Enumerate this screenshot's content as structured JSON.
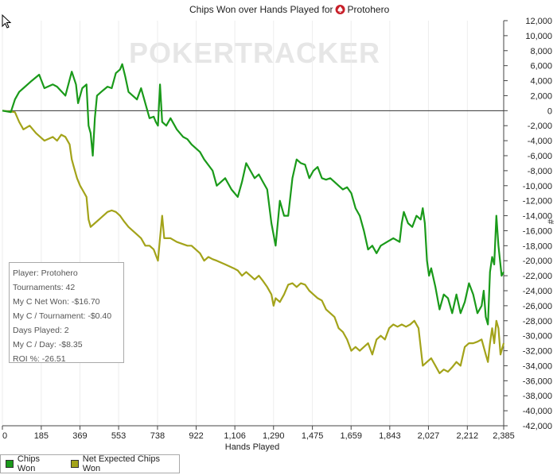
{
  "chart_data": {
    "type": "line",
    "title_prefix": "Chips Won over Hands Played for",
    "player_name": "Protohero",
    "watermark": "POKERTRACKER",
    "xlabel": "Hands Played",
    "ylabel": "#",
    "xlim": [
      0,
      2385
    ],
    "ylim": [
      -42000,
      12000
    ],
    "x_ticks": [
      0,
      185,
      369,
      553,
      738,
      922,
      1106,
      1290,
      1475,
      1659,
      1843,
      2027,
      2212,
      2385
    ],
    "x_tick_labels": [
      "0",
      "185",
      "369",
      "553",
      "738",
      "922",
      "1,106",
      "1,290",
      "1,475",
      "1,659",
      "1,843",
      "2,027",
      "2,212",
      "2,385"
    ],
    "y_ticks": [
      12000,
      10000,
      8000,
      6000,
      4000,
      2000,
      0,
      -2000,
      -4000,
      -6000,
      -8000,
      -10000,
      -12000,
      -14000,
      -16000,
      -18000,
      -20000,
      -22000,
      -24000,
      -26000,
      -28000,
      -30000,
      -32000,
      -34000,
      -36000,
      -38000,
      -40000,
      -42000
    ],
    "y_tick_labels": [
      "12,000",
      "10,000",
      "8,000",
      "6,000",
      "4,000",
      "2,000",
      "0",
      "-2,000",
      "-4,000",
      "-6,000",
      "-8,000",
      "-10,000",
      "-12,000",
      "-14,000",
      "-16,000",
      "-18,000",
      "-20,000",
      "-22,000",
      "-24,000",
      "-26,000",
      "-28,000",
      "-30,000",
      "-32,000",
      "-34,000",
      "-36,000",
      "-38,000",
      "-40,000",
      "-42,000"
    ],
    "grid": "vertical",
    "legend_position": "bottom-left",
    "series": [
      {
        "name": "Chips Won",
        "color": "#1a9a1a",
        "points": [
          [
            0,
            0
          ],
          [
            40,
            -200
          ],
          [
            60,
            1500
          ],
          [
            80,
            2500
          ],
          [
            100,
            3000
          ],
          [
            140,
            4000
          ],
          [
            175,
            4800
          ],
          [
            200,
            3000
          ],
          [
            240,
            3500
          ],
          [
            260,
            3200
          ],
          [
            300,
            2000
          ],
          [
            330,
            5200
          ],
          [
            350,
            3500
          ],
          [
            360,
            1000
          ],
          [
            380,
            3000
          ],
          [
            400,
            3500
          ],
          [
            410,
            -2000
          ],
          [
            420,
            -3000
          ],
          [
            430,
            -6000
          ],
          [
            440,
            -1000
          ],
          [
            450,
            2000
          ],
          [
            470,
            2500
          ],
          [
            500,
            3200
          ],
          [
            520,
            3000
          ],
          [
            540,
            5000
          ],
          [
            560,
            5500
          ],
          [
            570,
            6200
          ],
          [
            585,
            4500
          ],
          [
            600,
            2500
          ],
          [
            620,
            2000
          ],
          [
            640,
            1500
          ],
          [
            660,
            3000
          ],
          [
            680,
            1000
          ],
          [
            700,
            -1000
          ],
          [
            720,
            -800
          ],
          [
            730,
            -1500
          ],
          [
            740,
            -2000
          ],
          [
            750,
            3500
          ],
          [
            760,
            -1500
          ],
          [
            780,
            -2000
          ],
          [
            800,
            -1000
          ],
          [
            830,
            -2500
          ],
          [
            860,
            -3500
          ],
          [
            880,
            -3800
          ],
          [
            900,
            -4500
          ],
          [
            920,
            -5000
          ],
          [
            940,
            -5500
          ],
          [
            960,
            -6500
          ],
          [
            1000,
            -8000
          ],
          [
            1020,
            -10000
          ],
          [
            1040,
            -9500
          ],
          [
            1060,
            -9000
          ],
          [
            1090,
            -10500
          ],
          [
            1120,
            -11500
          ],
          [
            1140,
            -9500
          ],
          [
            1160,
            -7000
          ],
          [
            1180,
            -8000
          ],
          [
            1200,
            -9000
          ],
          [
            1220,
            -8500
          ],
          [
            1240,
            -9500
          ],
          [
            1260,
            -10500
          ],
          [
            1280,
            -15000
          ],
          [
            1300,
            -18000
          ],
          [
            1320,
            -12000
          ],
          [
            1340,
            -14000
          ],
          [
            1360,
            -14000
          ],
          [
            1380,
            -9000
          ],
          [
            1400,
            -6500
          ],
          [
            1420,
            -7000
          ],
          [
            1440,
            -7200
          ],
          [
            1460,
            -9000
          ],
          [
            1480,
            -8000
          ],
          [
            1500,
            -7500
          ],
          [
            1520,
            -9000
          ],
          [
            1540,
            -9200
          ],
          [
            1560,
            -9000
          ],
          [
            1580,
            -9500
          ],
          [
            1600,
            -10000
          ],
          [
            1620,
            -10500
          ],
          [
            1640,
            -10200
          ],
          [
            1660,
            -11000
          ],
          [
            1680,
            -13000
          ],
          [
            1700,
            -14000
          ],
          [
            1720,
            -16000
          ],
          [
            1740,
            -18500
          ],
          [
            1760,
            -18000
          ],
          [
            1780,
            -19000
          ],
          [
            1800,
            -18000
          ],
          [
            1830,
            -17500
          ],
          [
            1860,
            -17000
          ],
          [
            1890,
            -17500
          ],
          [
            1900,
            -15000
          ],
          [
            1910,
            -13500
          ],
          [
            1930,
            -15000
          ],
          [
            1950,
            -15500
          ],
          [
            1970,
            -14000
          ],
          [
            1990,
            -14500
          ],
          [
            2000,
            -13000
          ],
          [
            2010,
            -15000
          ],
          [
            2020,
            -20000
          ],
          [
            2030,
            -22000
          ],
          [
            2040,
            -21000
          ],
          [
            2060,
            -23500
          ],
          [
            2080,
            -26500
          ],
          [
            2100,
            -24500
          ],
          [
            2120,
            -25000
          ],
          [
            2140,
            -27000
          ],
          [
            2160,
            -24500
          ],
          [
            2180,
            -27000
          ],
          [
            2200,
            -25500
          ],
          [
            2220,
            -23000
          ],
          [
            2240,
            -24500
          ],
          [
            2260,
            -27000
          ],
          [
            2280,
            -26000
          ],
          [
            2290,
            -24000
          ],
          [
            2300,
            -27500
          ],
          [
            2310,
            -28500
          ],
          [
            2320,
            -21500
          ],
          [
            2330,
            -19500
          ],
          [
            2340,
            -20500
          ],
          [
            2350,
            -14000
          ],
          [
            2360,
            -18000
          ],
          [
            2375,
            -22000
          ],
          [
            2385,
            -21500
          ]
        ]
      },
      {
        "name": "Net Expected Chips Won",
        "color": "#a3a31a",
        "points": [
          [
            0,
            0
          ],
          [
            60,
            -200
          ],
          [
            80,
            -1500
          ],
          [
            100,
            -2500
          ],
          [
            130,
            -2000
          ],
          [
            160,
            -3000
          ],
          [
            200,
            -4000
          ],
          [
            240,
            -3500
          ],
          [
            260,
            -4000
          ],
          [
            280,
            -3200
          ],
          [
            300,
            -3500
          ],
          [
            320,
            -4500
          ],
          [
            330,
            -6500
          ],
          [
            340,
            -7500
          ],
          [
            355,
            -9000
          ],
          [
            370,
            -10000
          ],
          [
            380,
            -10500
          ],
          [
            400,
            -11500
          ],
          [
            410,
            -14500
          ],
          [
            420,
            -15500
          ],
          [
            440,
            -15000
          ],
          [
            460,
            -14500
          ],
          [
            480,
            -14000
          ],
          [
            500,
            -13500
          ],
          [
            520,
            -13300
          ],
          [
            540,
            -13500
          ],
          [
            560,
            -14000
          ],
          [
            580,
            -14800
          ],
          [
            600,
            -15500
          ],
          [
            620,
            -16000
          ],
          [
            640,
            -16500
          ],
          [
            660,
            -17000
          ],
          [
            680,
            -18000
          ],
          [
            700,
            -18000
          ],
          [
            720,
            -18500
          ],
          [
            740,
            -20000
          ],
          [
            750,
            -17000
          ],
          [
            760,
            -14000
          ],
          [
            770,
            -17000
          ],
          [
            800,
            -17000
          ],
          [
            830,
            -17500
          ],
          [
            860,
            -17800
          ],
          [
            880,
            -18000
          ],
          [
            900,
            -18000
          ],
          [
            920,
            -18500
          ],
          [
            940,
            -19000
          ],
          [
            960,
            -20000
          ],
          [
            980,
            -19500
          ],
          [
            1000,
            -19800
          ],
          [
            1020,
            -20000
          ],
          [
            1060,
            -20500
          ],
          [
            1100,
            -21000
          ],
          [
            1120,
            -21300
          ],
          [
            1140,
            -22000
          ],
          [
            1160,
            -21500
          ],
          [
            1180,
            -22000
          ],
          [
            1200,
            -22500
          ],
          [
            1220,
            -22000
          ],
          [
            1240,
            -22700
          ],
          [
            1260,
            -23500
          ],
          [
            1280,
            -24500
          ],
          [
            1290,
            -26000
          ],
          [
            1300,
            -25000
          ],
          [
            1320,
            -25500
          ],
          [
            1340,
            -24500
          ],
          [
            1360,
            -23200
          ],
          [
            1380,
            -23000
          ],
          [
            1400,
            -23500
          ],
          [
            1420,
            -23000
          ],
          [
            1440,
            -23200
          ],
          [
            1460,
            -24000
          ],
          [
            1480,
            -24500
          ],
          [
            1500,
            -25000
          ],
          [
            1520,
            -25300
          ],
          [
            1540,
            -26500
          ],
          [
            1560,
            -27000
          ],
          [
            1580,
            -27500
          ],
          [
            1600,
            -29000
          ],
          [
            1620,
            -29500
          ],
          [
            1640,
            -30500
          ],
          [
            1660,
            -32000
          ],
          [
            1680,
            -31500
          ],
          [
            1700,
            -32000
          ],
          [
            1720,
            -31500
          ],
          [
            1740,
            -31000
          ],
          [
            1760,
            -32500
          ],
          [
            1780,
            -30500
          ],
          [
            1800,
            -30000
          ],
          [
            1820,
            -30500
          ],
          [
            1840,
            -29000
          ],
          [
            1860,
            -28500
          ],
          [
            1880,
            -28800
          ],
          [
            1900,
            -28500
          ],
          [
            1920,
            -28800
          ],
          [
            1940,
            -28500
          ],
          [
            1960,
            -28000
          ],
          [
            1980,
            -29000
          ],
          [
            2000,
            -34000
          ],
          [
            2020,
            -33500
          ],
          [
            2040,
            -33000
          ],
          [
            2060,
            -34000
          ],
          [
            2080,
            -35000
          ],
          [
            2100,
            -34500
          ],
          [
            2120,
            -34800
          ],
          [
            2140,
            -34200
          ],
          [
            2160,
            -33500
          ],
          [
            2180,
            -34000
          ],
          [
            2200,
            -31500
          ],
          [
            2220,
            -31000
          ],
          [
            2240,
            -31000
          ],
          [
            2260,
            -30800
          ],
          [
            2280,
            -30500
          ],
          [
            2300,
            -32500
          ],
          [
            2310,
            -33500
          ],
          [
            2320,
            -31000
          ],
          [
            2330,
            -29000
          ],
          [
            2340,
            -31000
          ],
          [
            2350,
            -28000
          ],
          [
            2360,
            -29000
          ],
          [
            2370,
            -32500
          ],
          [
            2385,
            -31000
          ]
        ]
      }
    ]
  },
  "stats_box": [
    "Player: Protohero",
    "Tournaments: 42",
    "My C Net Won: -$16.70",
    "My C / Tournament: -$0.40",
    "Days Played: 2",
    "My C / Day: -$8.35",
    "ROI %: -26.51"
  ],
  "icons": {
    "title_icon": "spade-icon",
    "cursor": "mouse-pointer-icon"
  }
}
